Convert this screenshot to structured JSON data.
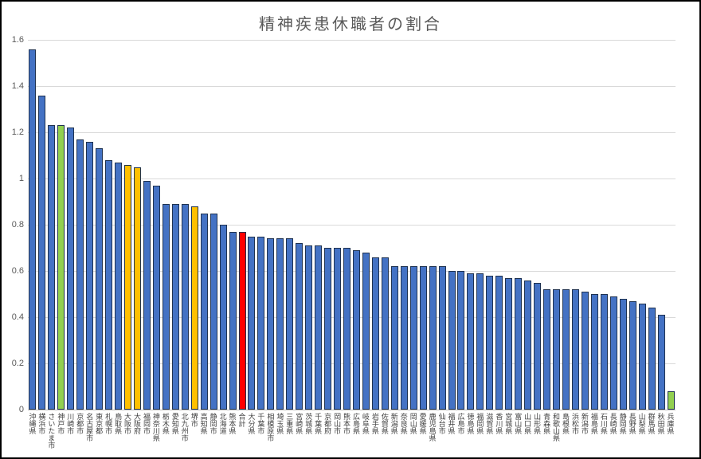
{
  "window": {
    "background": "#FFFFFF",
    "border_color": "#000000"
  },
  "chart_data": {
    "type": "bar",
    "title": "精神疾患休職者の割合",
    "xlabel": "",
    "ylabel": "",
    "ylim": [
      0,
      1.6
    ],
    "ytick_labels": [
      "0",
      "0.2",
      "0.4",
      "0.6",
      "0.8",
      "1",
      "1.2",
      "1.4",
      "1.6"
    ],
    "grid": "horizontal",
    "legend": "none",
    "categories": [
      "沖縄県",
      "横浜市",
      "さいたま市",
      "神戸市",
      "川崎市",
      "京都市",
      "名古屋市",
      "東京都",
      "札幌市",
      "鳥取県",
      "大阪市",
      "大阪府",
      "福岡市",
      "神奈川県",
      "栃木県",
      "愛知県",
      "北九州市",
      "堺市",
      "高知県",
      "静岡市",
      "北海道",
      "熊本県",
      "合計",
      "大分県",
      "千葉市",
      "相模原市",
      "埼玉県",
      "三重県",
      "宮崎県",
      "茨城県",
      "千葉県",
      "京都府",
      "岡山市",
      "熊本市",
      "広島県",
      "岐阜県",
      "岩手県",
      "佐賀県",
      "新潟県",
      "奈良県",
      "岡山県",
      "愛媛県",
      "鹿児島県",
      "仙台市",
      "福井県",
      "広島市",
      "徳島県",
      "福岡県",
      "滋賀県",
      "香川県",
      "宮城県",
      "富山県",
      "山口県",
      "山形県",
      "青森県",
      "和歌山県",
      "島根県",
      "浜松市",
      "新潟市",
      "福島県",
      "石川県",
      "長崎県",
      "静岡県",
      "長野県",
      "山梨県",
      "群馬県",
      "秋田県",
      "兵庫県"
    ],
    "values": [
      1.56,
      1.36,
      1.23,
      1.23,
      1.22,
      1.17,
      1.16,
      1.13,
      1.08,
      1.07,
      1.06,
      1.05,
      0.99,
      0.97,
      0.89,
      0.89,
      0.89,
      0.88,
      0.85,
      0.85,
      0.8,
      0.77,
      0.77,
      0.75,
      0.75,
      0.74,
      0.74,
      0.74,
      0.72,
      0.71,
      0.71,
      0.7,
      0.7,
      0.7,
      0.69,
      0.68,
      0.66,
      0.66,
      0.62,
      0.62,
      0.62,
      0.62,
      0.62,
      0.62,
      0.6,
      0.6,
      0.59,
      0.59,
      0.58,
      0.58,
      0.57,
      0.57,
      0.56,
      0.55,
      0.52,
      0.52,
      0.52,
      0.52,
      0.51,
      0.5,
      0.5,
      0.49,
      0.48,
      0.47,
      0.46,
      0.44,
      0.41,
      0.08
    ],
    "default_bar_color": "#4472C4",
    "bar_border_color": "#1F3250",
    "highlight_colors": {
      "神戸市": "#92D050",
      "大阪市": "#FFC000",
      "大阪府": "#FFC000",
      "堺市": "#FFC000",
      "合計": "#FF0000",
      "兵庫県": "#92D050"
    },
    "gridline_color": "#D9D9D9",
    "axis_line_color": "#BFBFBF",
    "title_color": "#595959",
    "tick_label_color": "#595959",
    "category_label_color": "#404040"
  }
}
